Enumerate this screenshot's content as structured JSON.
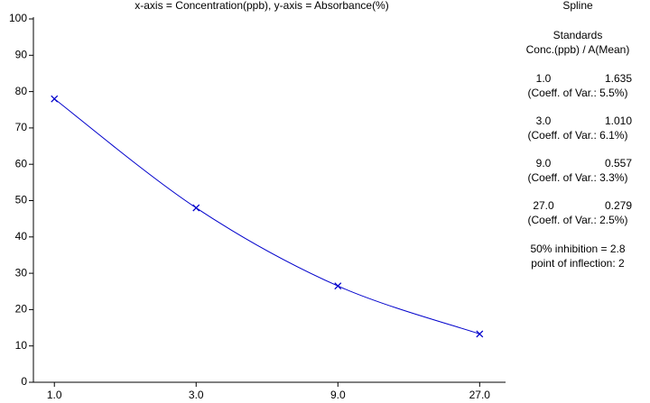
{
  "chart_data": {
    "type": "line",
    "title": "x-axis = Concentration(ppb), y-axis = Absorbance(%)",
    "x": [
      1,
      3,
      9,
      27
    ],
    "series": [
      {
        "values": [
          78,
          48,
          26.5,
          13.3
        ],
        "color": "#0000cc",
        "marker": "x"
      }
    ],
    "xscale": "log",
    "xlim": [
      0.85,
      33
    ],
    "xticks": [
      {
        "value": 1,
        "label": "1.0"
      },
      {
        "value": 3,
        "label": "3.0"
      },
      {
        "value": 9,
        "label": "9.0"
      },
      {
        "value": 27,
        "label": "27.0"
      }
    ],
    "ylim": [
      0,
      100
    ],
    "yticks": [
      0,
      10,
      20,
      30,
      40,
      50,
      60,
      70,
      80,
      90,
      100
    ],
    "grid": false
  },
  "panel": {
    "title": "Spline",
    "heading": "Standards",
    "columns": "Conc.(ppb) / A(Mean)",
    "rows": [
      {
        "conc": "1.0",
        "mean": "1.635",
        "cv": "(Coeff. of Var.: 5.5%)"
      },
      {
        "conc": "3.0",
        "mean": "1.010",
        "cv": "(Coeff. of Var.: 6.1%)"
      },
      {
        "conc": "9.0",
        "mean": "0.557",
        "cv": "(Coeff. of Var.: 3.3%)"
      },
      {
        "conc": "27.0",
        "mean": "0.279",
        "cv": "(Coeff. of Var.: 2.5%)"
      }
    ],
    "inhibition": "50% inhibition = 2.8",
    "inflection": "point of inflection: 2"
  }
}
